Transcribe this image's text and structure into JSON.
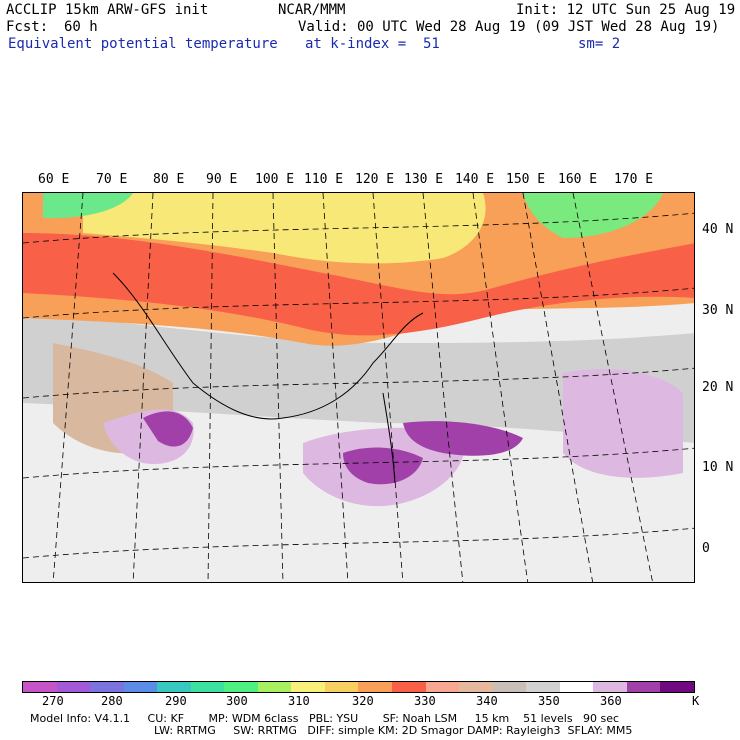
{
  "header": {
    "model_line": "ACCLIP 15km ARW-GFS init",
    "org": "NCAR/MMM",
    "init": "Init: 12 UTC Sun 25 Aug 19",
    "fcst_label": "Fcst:",
    "fcst_value": "60 h",
    "valid": "Valid: 00 UTC Wed 28 Aug 19 (09 JST Wed 28 Aug 19)",
    "field": "Equivalent potential temperature",
    "level": "at k-index =  51",
    "smooth": "sm= 2"
  },
  "map": {
    "lon_labels": [
      "60 E",
      "70 E",
      "80 E",
      "90 E",
      "100 E",
      "110 E",
      "120 E",
      "130 E",
      "140 E",
      "150 E",
      "160 E",
      "170 E"
    ],
    "lat_labels": [
      "40 N",
      "30 N",
      "20 N",
      "10 N",
      "0"
    ]
  },
  "colorbar": {
    "colors": [
      "#c855c8",
      "#a35ad8",
      "#7b74e0",
      "#5a8ce8",
      "#38c8c0",
      "#3ce0a0",
      "#4ef080",
      "#a8f060",
      "#f8f078",
      "#f8d060",
      "#f8a058",
      "#f86048",
      "#f8a890",
      "#e6b89e",
      "#c8c0b8",
      "#d2d2d2",
      "#ffffff",
      "#ddb8e0",
      "#a040a8",
      "#700880"
    ],
    "ticks": [
      "270",
      "280",
      "290",
      "300",
      "310",
      "320",
      "330",
      "340",
      "350",
      "360"
    ],
    "unit": "K"
  },
  "footer": {
    "line1": "Model Info: V4.1.1     CU: KF       MP: WDM 6class   PBL: YSU       SF: Noah LSM     15 km    51 levels   90 sec",
    "line2": "LW: RRTMG     SW: RRTMG   DIFF: simple KM: 2D Smagor DAMP: Rayleigh3  SFLAY: MM5"
  }
}
